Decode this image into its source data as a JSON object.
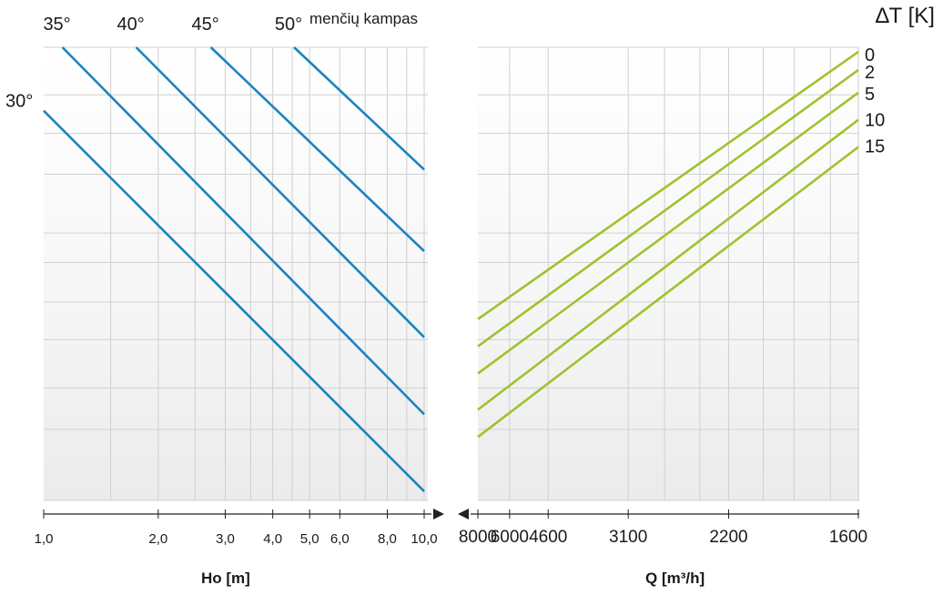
{
  "chart_data": [
    {
      "type": "line",
      "panel": "left",
      "title": "",
      "xlabel": "Ho  [m]",
      "ylabel": "",
      "x_scale": "log",
      "xlim": [
        1.0,
        10.0
      ],
      "x_ticks": [
        "1,0",
        "2,0",
        "3,0",
        "4,0",
        "5,0",
        "6,0",
        "8,0",
        "10,0"
      ],
      "x_tick_values": [
        1,
        2,
        3,
        4,
        5,
        6,
        8,
        10
      ],
      "series_label_title": "menčių kampas",
      "series": [
        {
          "name": "30°",
          "x": [
            1.0,
            10.0
          ],
          "y": [
            0.86,
            0.02
          ]
        },
        {
          "name": "35°",
          "x": [
            1.12,
            10.0
          ],
          "y": [
            1.0,
            0.19
          ]
        },
        {
          "name": "40°",
          "x": [
            1.75,
            10.0
          ],
          "y": [
            1.0,
            0.36
          ]
        },
        {
          "name": "45°",
          "x": [
            2.75,
            10.0
          ],
          "y": [
            1.0,
            0.55
          ]
        },
        {
          "name": "50°",
          "x": [
            4.55,
            10.0
          ],
          "y": [
            1.0,
            0.73
          ]
        }
      ],
      "color": "#1b83bf",
      "grid": true
    },
    {
      "type": "line",
      "panel": "right",
      "title": "",
      "xlabel": "Q [m³/h]",
      "ylabel": "",
      "x_scale": "reciprocal",
      "xlim": [
        8000,
        1600
      ],
      "x_ticks": [
        "8000",
        "6000",
        "4600",
        "3100",
        "2200",
        "1600"
      ],
      "x_tick_values": [
        8000,
        6000,
        4600,
        3100,
        2200,
        1600
      ],
      "series_label_title": "∆T [K]",
      "series": [
        {
          "name": "0",
          "x": [
            8000,
            1600
          ],
          "y": [
            0.4,
            0.99
          ]
        },
        {
          "name": "2",
          "x": [
            8000,
            1600
          ],
          "y": [
            0.34,
            0.95
          ]
        },
        {
          "name": "5",
          "x": [
            8000,
            1600
          ],
          "y": [
            0.28,
            0.9
          ]
        },
        {
          "name": "10",
          "x": [
            8000,
            1600
          ],
          "y": [
            0.2,
            0.84
          ]
        },
        {
          "name": "15",
          "x": [
            8000,
            1600
          ],
          "y": [
            0.14,
            0.78
          ]
        }
      ],
      "color": "#9ec32d",
      "grid": true
    }
  ]
}
